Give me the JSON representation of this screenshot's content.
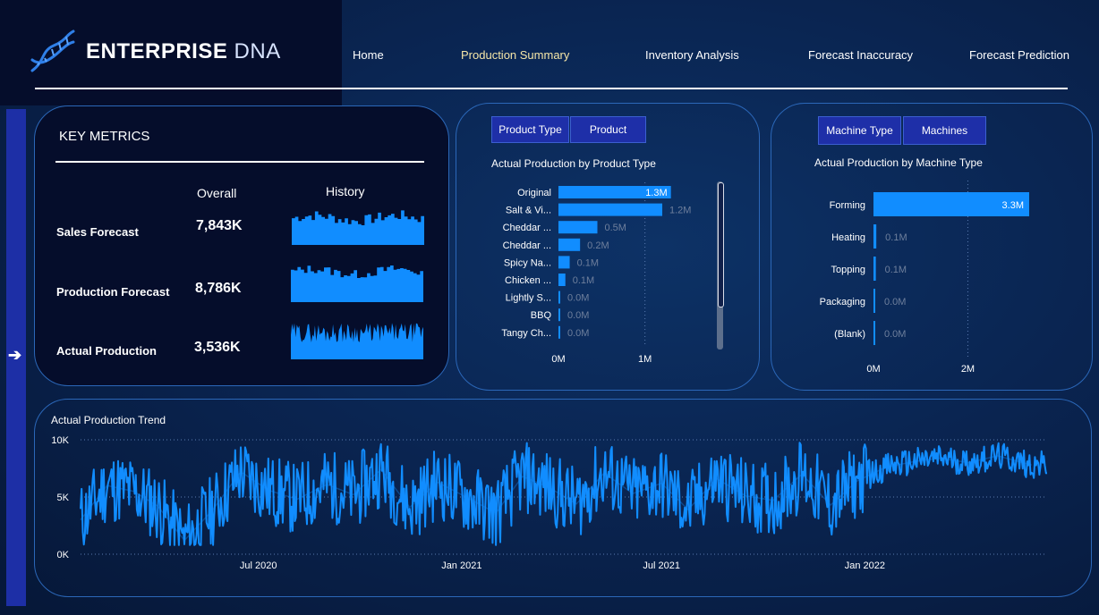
{
  "header": {
    "brand_bold": "ENTERPRISE",
    "brand_light": "DNA",
    "logo_icon": "dna-helix-icon",
    "nav": [
      {
        "label": "Home",
        "active": false
      },
      {
        "label": "Production Summary",
        "active": true
      },
      {
        "label": "Inventory Analysis",
        "active": false
      },
      {
        "label": "Forecast Inaccuracy",
        "active": false
      },
      {
        "label": "Forecast Prediction",
        "active": false
      }
    ]
  },
  "sidebar": {
    "icon": "arrow-right-icon",
    "glyph": "➔"
  },
  "key_metrics": {
    "title": "KEY METRICS",
    "col_overall": "Overall",
    "col_history": "History",
    "rows": [
      {
        "label": "Sales Forecast",
        "value": "7,843K"
      },
      {
        "label": "Production Forecast",
        "value": "8,786K"
      },
      {
        "label": "Actual Production",
        "value": "3,536K"
      }
    ]
  },
  "product_panel": {
    "slicers": [
      "Product Type",
      "Product"
    ],
    "chart_title": "Actual Production by Product Type"
  },
  "machine_panel": {
    "slicers": [
      "Machine Type",
      "Machines"
    ],
    "chart_title": "Actual Production by Machine Type"
  },
  "trend_panel": {
    "chart_title": "Actual Production Trend"
  },
  "colors": {
    "bar": "#118dff",
    "accent_nav": "#f5e6a8",
    "panel_border": "#2b67b8",
    "slicer": "#1e2fa8"
  },
  "chart_data": [
    {
      "type": "bar",
      "orientation": "horizontal",
      "title": "Actual Production by Product Type",
      "categories": [
        "Original",
        "Salt & Vi...",
        "Cheddar ...",
        "Cheddar ...",
        "Spicy Na...",
        "Chicken ...",
        "Lightly S...",
        "BBQ",
        "Tangy Ch..."
      ],
      "values": [
        1.3,
        1.2,
        0.45,
        0.25,
        0.13,
        0.08,
        0.02,
        0.01,
        0.01
      ],
      "data_labels": [
        "1.3M",
        "1.2M",
        "0.5M",
        "0.2M",
        "0.1M",
        "0.1M",
        "0.0M",
        "0.0M",
        "0.0M"
      ],
      "x_ticks": [
        "0M",
        "1M"
      ],
      "xlim": [
        0,
        1.5
      ]
    },
    {
      "type": "bar",
      "orientation": "horizontal",
      "title": "Actual Production by Machine Type",
      "categories": [
        "Forming",
        "Heating",
        "Topping",
        "Packaging",
        "(Blank)"
      ],
      "values": [
        3.3,
        0.06,
        0.05,
        0.0,
        0.0
      ],
      "data_labels": [
        "3.3M",
        "0.1M",
        "0.1M",
        "0.0M",
        "0.0M"
      ],
      "x_ticks": [
        "0M",
        "2M"
      ],
      "xlim": [
        0,
        3.3
      ]
    },
    {
      "type": "line",
      "title": "Actual Production Trend",
      "y_ticks": [
        "10K",
        "5K",
        "0K"
      ],
      "x_ticks": [
        "Jul 2020",
        "Jan 2021",
        "Jul 2021",
        "Jan 2022"
      ],
      "ylim": [
        0,
        10000
      ],
      "x_range": [
        "2020-01-22",
        "2022-06-15"
      ],
      "series": [
        {
          "x": [
            "2020-01-22",
            "2020-02-15",
            "2020-03-10",
            "2020-04-01",
            "2020-04-25",
            "2020-05-20",
            "2020-06-15",
            "2020-07-10",
            "2020-08-05",
            "2020-09-01",
            "2020-09-25",
            "2020-10-20",
            "2020-11-15",
            "2020-12-10",
            "2021-01-05",
            "2021-02-01",
            "2021-02-25",
            "2021-03-20",
            "2021-04-15",
            "2021-05-10",
            "2021-06-05",
            "2021-07-01",
            "2021-07-25",
            "2021-08-20",
            "2021-09-15",
            "2021-10-10",
            "2021-11-05",
            "2021-12-01",
            "2021-12-25",
            "2022-01-20",
            "2022-02-15",
            "2022-03-10",
            "2022-04-05",
            "2022-05-01",
            "2022-06-01"
          ],
          "values": [
            3000,
            6000,
            5500,
            4200,
            1200,
            3800,
            7200,
            5600,
            4800,
            6100,
            5200,
            7400,
            4100,
            6300,
            5000,
            3600,
            6800,
            5900,
            4400,
            7100,
            5300,
            6200,
            3900,
            6600,
            5100,
            4700,
            7000,
            4300,
            6400,
            7600,
            8100,
            8400,
            8000,
            8600,
            7800
          ]
        }
      ]
    }
  ]
}
